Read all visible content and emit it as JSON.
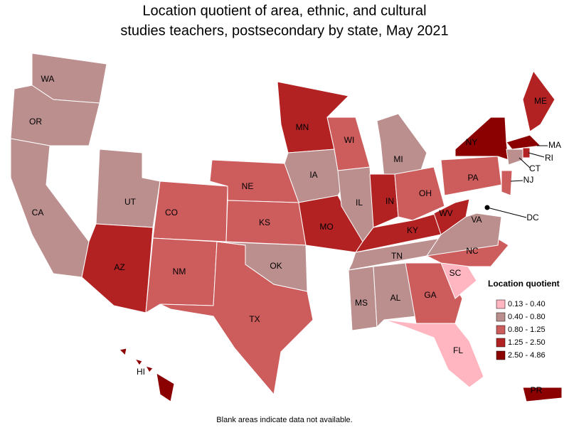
{
  "title": [
    "Location quotient of area, ethnic, and cultural",
    "studies teachers, postsecondary by state, May 2021"
  ],
  "states": [
    {
      "label": "WA",
      "color": "#bc8f8f"
    },
    {
      "label": "OR",
      "color": "#bc8f8f"
    },
    {
      "label": "CA",
      "color": "#bc8f8f"
    },
    {
      "label": "UT",
      "color": "#bc8f8f"
    },
    {
      "label": "AZ",
      "color": "#b22222"
    },
    {
      "label": "CO",
      "color": "#cd5c5c"
    },
    {
      "label": "NM",
      "color": "#cd5c5c"
    },
    {
      "label": "TX",
      "color": "#cd5c5c"
    },
    {
      "label": "NE",
      "color": "#cd5c5c"
    },
    {
      "label": "KS",
      "color": "#cd5c5c"
    },
    {
      "label": "OK",
      "color": "#bc8f8f"
    },
    {
      "label": "MN",
      "color": "#b22222"
    },
    {
      "label": "IA",
      "color": "#bc8f8f"
    },
    {
      "label": "MO",
      "color": "#b22222"
    },
    {
      "label": "WI",
      "color": "#cd5c5c"
    },
    {
      "label": "IL",
      "color": "#bc8f8f"
    },
    {
      "label": "MI",
      "color": "#bc8f8f"
    },
    {
      "label": "IN",
      "color": "#b22222"
    },
    {
      "label": "OH",
      "color": "#cd5c5c"
    },
    {
      "label": "KY",
      "color": "#b22222"
    },
    {
      "label": "TN",
      "color": "#bc8f8f"
    },
    {
      "label": "MS",
      "color": "#bc8f8f"
    },
    {
      "label": "AL",
      "color": "#bc8f8f"
    },
    {
      "label": "GA",
      "color": "#cd5c5c"
    },
    {
      "label": "FL",
      "color": "#ffb6c1"
    },
    {
      "label": "SC",
      "color": "#ffb6c1"
    },
    {
      "label": "NC",
      "color": "#cd5c5c"
    },
    {
      "label": "VA",
      "color": "#bc8f8f"
    },
    {
      "label": "WV",
      "color": "#b22222"
    },
    {
      "label": "PA",
      "color": "#cd5c5c"
    },
    {
      "label": "NY",
      "color": "#8b0000"
    },
    {
      "label": "ME",
      "color": "#b22222"
    },
    {
      "label": "MA",
      "color": "#8b0000"
    },
    {
      "label": "RI",
      "color": "#b22222"
    },
    {
      "label": "CT",
      "color": "#bc8f8f"
    },
    {
      "label": "NJ",
      "color": "#cd5c5c"
    },
    {
      "label": "DC",
      "color": "#000000"
    },
    {
      "label": "HI",
      "color": "#8b0000"
    },
    {
      "label": "PR",
      "color": "#8b0000"
    }
  ],
  "legend": {
    "title": "Location quotient",
    "items": [
      {
        "label": "0.13 - 0.40",
        "color": "#ffb6c1"
      },
      {
        "label": "0.40 - 0.80",
        "color": "#bc8f8f"
      },
      {
        "label": "0.80 - 1.25",
        "color": "#cd5c5c"
      },
      {
        "label": "1.25 - 2.50",
        "color": "#b22222"
      },
      {
        "label": "2.50 - 4.86",
        "color": "#8b0000"
      }
    ]
  },
  "note": "Blank areas indicate data not available."
}
